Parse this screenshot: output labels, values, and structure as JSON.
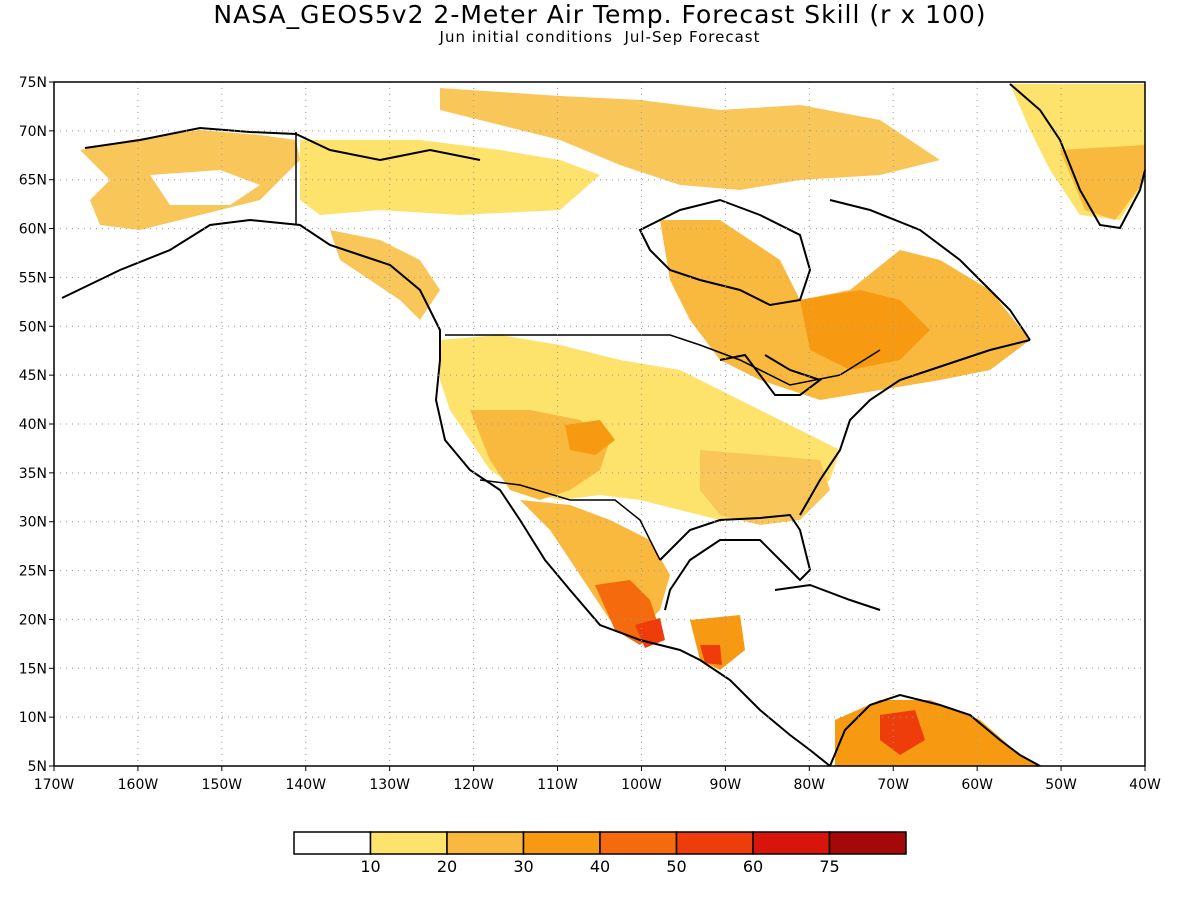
{
  "map": {
    "title": "NASA_GEOS5v2 2-Meter Air Temp. Forecast Skill (r x 100)",
    "subtitle": "Jun initial conditions  Jul-Sep Forecast",
    "lon_ticks": [
      "170W",
      "160W",
      "150W",
      "140W",
      "130W",
      "120W",
      "110W",
      "100W",
      "90W",
      "80W",
      "70W",
      "60W",
      "50W",
      "40W"
    ],
    "lat_ticks": [
      "75N",
      "70N",
      "65N",
      "60N",
      "55N",
      "50N",
      "45N",
      "40N",
      "35N",
      "30N",
      "25N",
      "20N",
      "15N",
      "10N",
      "5N"
    ],
    "extent": {
      "lon": [
        -170,
        -40
      ],
      "lat": [
        5,
        75
      ]
    },
    "grid": "dotted",
    "legend": {
      "labels": [
        "10",
        "20",
        "30",
        "40",
        "50",
        "60",
        "75"
      ],
      "colors": [
        "#ffffff",
        "#fde26c",
        "#f9b93e",
        "#f79a12",
        "#f46a0c",
        "#ee3d0b",
        "#d8150a",
        "#a50808"
      ]
    }
  }
}
